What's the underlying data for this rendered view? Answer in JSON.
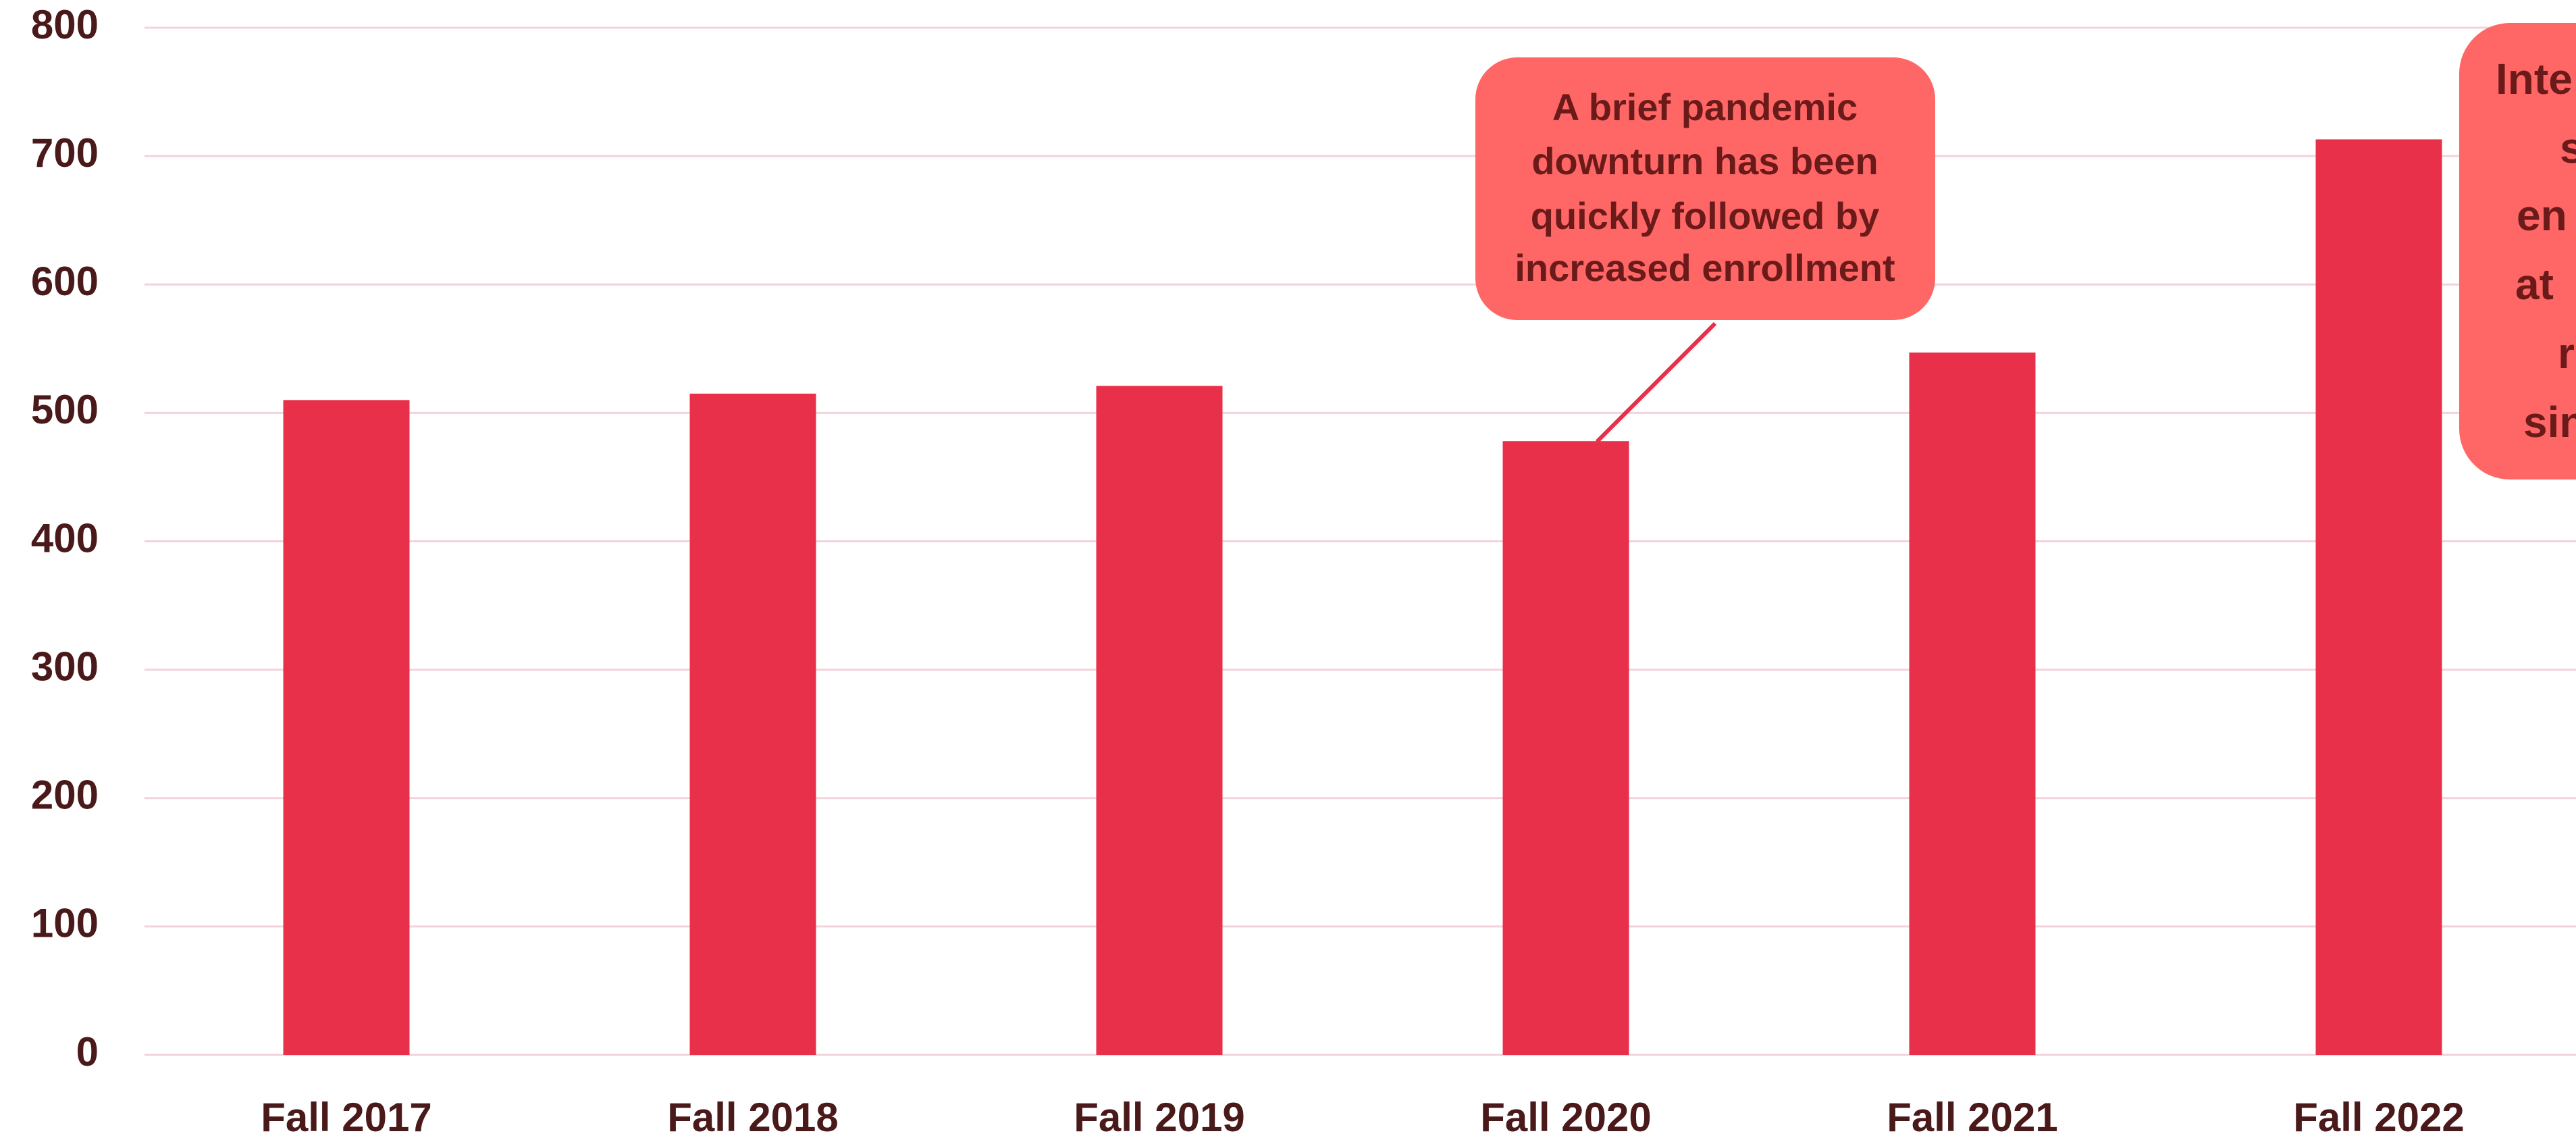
{
  "chart_data": {
    "type": "bar",
    "categories": [
      "Fall 2017",
      "Fall 2018",
      "Fall 2019",
      "Fall 2020",
      "Fall 2021",
      "Fall 2022"
    ],
    "values": [
      510,
      515,
      521,
      478,
      547,
      713
    ],
    "color": "#e8304a",
    "ylim": [
      0,
      800
    ],
    "yticks": [
      0,
      100,
      200,
      300,
      400,
      500,
      600,
      700,
      800
    ],
    "grid": true,
    "annotations": [
      {
        "lines": [
          "A brief pandemic",
          "downturn has been",
          "quickly followed by",
          "increased enrollment"
        ]
      },
      {
        "lines": [
          "Inte",
          "s",
          "en",
          "at",
          "ri",
          "sin"
        ]
      }
    ]
  }
}
